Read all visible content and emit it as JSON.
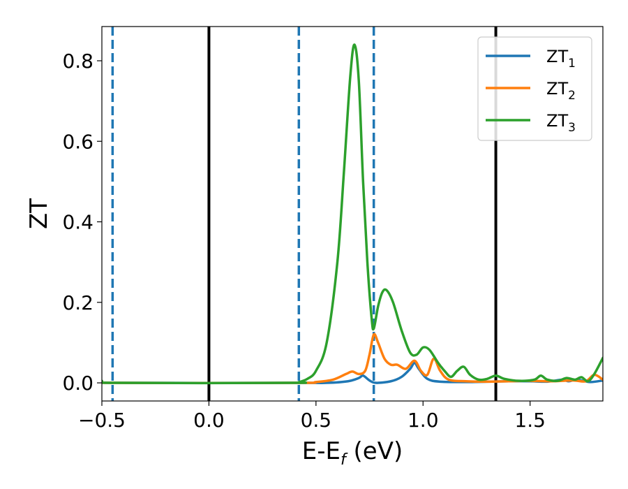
{
  "chart_data": {
    "type": "line",
    "title": "",
    "xlabel": {
      "main": "E-E",
      "sub": "f",
      "unit": " (eV)"
    },
    "ylabel": "ZT",
    "xlim": [
      -0.5,
      1.84
    ],
    "ylim": [
      -0.045,
      0.885
    ],
    "x_ticks": [
      -0.5,
      0.0,
      0.5,
      1.0,
      1.5
    ],
    "x_tick_labels": [
      "−0.5",
      "0.0",
      "0.5",
      "1.0",
      "1.5"
    ],
    "y_ticks": [
      0.0,
      0.2,
      0.4,
      0.6,
      0.8
    ],
    "y_tick_labels": [
      "0.0",
      "0.2",
      "0.4",
      "0.6",
      "0.8"
    ],
    "grid": false,
    "legend_position": "top-right",
    "vertical_lines": [
      {
        "x": -0.45,
        "style": "dashed",
        "color": "#1f77b4"
      },
      {
        "x": 0.0,
        "style": "solid",
        "color": "#000000"
      },
      {
        "x": 0.42,
        "style": "dashed",
        "color": "#1f77b4"
      },
      {
        "x": 0.77,
        "style": "dashed",
        "color": "#1f77b4"
      },
      {
        "x": 1.34,
        "style": "solid",
        "color": "#000000"
      }
    ],
    "series": [
      {
        "name": "ZT",
        "sub": "1",
        "color": "#1f77b4",
        "points": [
          [
            -0.5,
            0.004
          ],
          [
            -0.45,
            0.0
          ],
          [
            0.4,
            0.0
          ],
          [
            0.55,
            0.0
          ],
          [
            0.65,
            0.004
          ],
          [
            0.7,
            0.012
          ],
          [
            0.72,
            0.018
          ],
          [
            0.75,
            0.006
          ],
          [
            0.78,
            0.0
          ],
          [
            0.85,
            0.004
          ],
          [
            0.9,
            0.015
          ],
          [
            0.94,
            0.035
          ],
          [
            0.96,
            0.05
          ],
          [
            0.98,
            0.035
          ],
          [
            1.02,
            0.01
          ],
          [
            1.08,
            0.003
          ],
          [
            1.2,
            0.002
          ],
          [
            1.3,
            0.003
          ],
          [
            1.4,
            0.004
          ],
          [
            1.5,
            0.004
          ],
          [
            1.58,
            0.003
          ],
          [
            1.65,
            0.008
          ],
          [
            1.68,
            0.004
          ],
          [
            1.72,
            0.008
          ],
          [
            1.78,
            0.002
          ],
          [
            1.84,
            0.006
          ]
        ]
      },
      {
        "name": "ZT",
        "sub": "2",
        "color": "#ff7f0e",
        "points": [
          [
            -0.5,
            0.004
          ],
          [
            -0.45,
            0.0
          ],
          [
            0.4,
            0.0
          ],
          [
            0.5,
            0.002
          ],
          [
            0.58,
            0.008
          ],
          [
            0.64,
            0.022
          ],
          [
            0.67,
            0.028
          ],
          [
            0.7,
            0.022
          ],
          [
            0.73,
            0.03
          ],
          [
            0.75,
            0.07
          ],
          [
            0.77,
            0.12
          ],
          [
            0.79,
            0.1
          ],
          [
            0.82,
            0.06
          ],
          [
            0.85,
            0.045
          ],
          [
            0.88,
            0.045
          ],
          [
            0.92,
            0.035
          ],
          [
            0.96,
            0.055
          ],
          [
            0.99,
            0.03
          ],
          [
            1.02,
            0.02
          ],
          [
            1.05,
            0.06
          ],
          [
            1.08,
            0.03
          ],
          [
            1.12,
            0.008
          ],
          [
            1.2,
            0.004
          ],
          [
            1.3,
            0.003
          ],
          [
            1.4,
            0.004
          ],
          [
            1.5,
            0.005
          ],
          [
            1.6,
            0.004
          ],
          [
            1.7,
            0.006
          ],
          [
            1.76,
            0.004
          ],
          [
            1.8,
            0.02
          ],
          [
            1.84,
            0.008
          ]
        ]
      },
      {
        "name": "ZT",
        "sub": "3",
        "color": "#2ca02c",
        "points": [
          [
            -0.5,
            0.005
          ],
          [
            -0.45,
            0.0
          ],
          [
            0.38,
            0.0
          ],
          [
            0.42,
            0.002
          ],
          [
            0.46,
            0.01
          ],
          [
            0.5,
            0.03
          ],
          [
            0.55,
            0.1
          ],
          [
            0.6,
            0.3
          ],
          [
            0.63,
            0.52
          ],
          [
            0.66,
            0.76
          ],
          [
            0.68,
            0.84
          ],
          [
            0.7,
            0.75
          ],
          [
            0.72,
            0.5
          ],
          [
            0.74,
            0.3
          ],
          [
            0.76,
            0.16
          ],
          [
            0.77,
            0.135
          ],
          [
            0.79,
            0.19
          ],
          [
            0.81,
            0.225
          ],
          [
            0.83,
            0.23
          ],
          [
            0.86,
            0.2
          ],
          [
            0.9,
            0.13
          ],
          [
            0.94,
            0.075
          ],
          [
            0.97,
            0.07
          ],
          [
            1.0,
            0.088
          ],
          [
            1.03,
            0.082
          ],
          [
            1.07,
            0.05
          ],
          [
            1.1,
            0.03
          ],
          [
            1.13,
            0.015
          ],
          [
            1.16,
            0.03
          ],
          [
            1.19,
            0.04
          ],
          [
            1.22,
            0.02
          ],
          [
            1.26,
            0.008
          ],
          [
            1.3,
            0.01
          ],
          [
            1.34,
            0.018
          ],
          [
            1.38,
            0.01
          ],
          [
            1.45,
            0.005
          ],
          [
            1.52,
            0.008
          ],
          [
            1.55,
            0.018
          ],
          [
            1.58,
            0.008
          ],
          [
            1.63,
            0.005
          ],
          [
            1.67,
            0.012
          ],
          [
            1.71,
            0.008
          ],
          [
            1.74,
            0.014
          ],
          [
            1.77,
            0.004
          ],
          [
            1.8,
            0.022
          ],
          [
            1.84,
            0.062
          ]
        ]
      }
    ]
  }
}
